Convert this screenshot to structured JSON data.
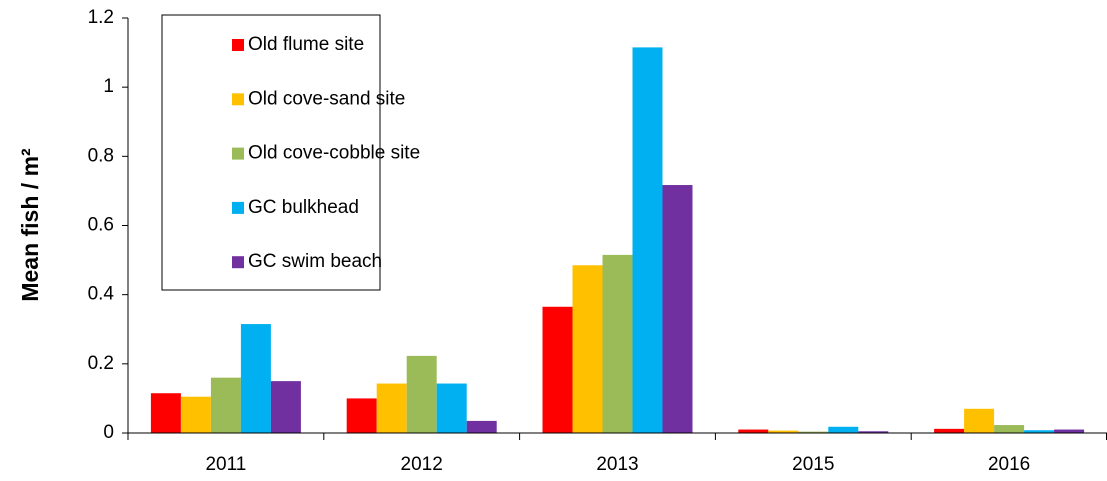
{
  "chart_data": {
    "type": "bar",
    "y_label": "Mean fish / m²",
    "categories": [
      "2011",
      "2012",
      "2013",
      "2015",
      "2016"
    ],
    "series": [
      {
        "name": "Old flume site",
        "color": "#ff0000",
        "values": [
          0.115,
          0.1,
          0.365,
          0.01,
          0.012
        ]
      },
      {
        "name": "Old cove-sand site",
        "color": "#ffc000",
        "values": [
          0.105,
          0.143,
          0.485,
          0.007,
          0.07
        ]
      },
      {
        "name": "Old cove-cobble site",
        "color": "#9bbb59",
        "values": [
          0.16,
          0.223,
          0.515,
          0.004,
          0.023
        ]
      },
      {
        "name": "GC bulkhead",
        "color": "#00b0f0",
        "values": [
          0.315,
          0.143,
          1.115,
          0.018,
          0.008
        ]
      },
      {
        "name": "GC swim beach",
        "color": "#7030a0",
        "values": [
          0.15,
          0.035,
          0.717,
          0.005,
          0.01
        ]
      }
    ],
    "ylim": [
      0,
      1.2
    ],
    "yticks": [
      0,
      0.2,
      0.4,
      0.6,
      0.8,
      1,
      1.2
    ],
    "grid": false,
    "legend": "upper-left"
  }
}
